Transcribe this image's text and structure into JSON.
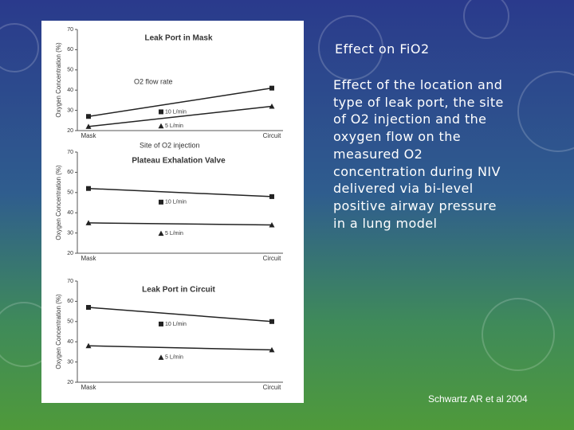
{
  "slide": {
    "title": "Effect on FiO2",
    "body": "Effect of the location and type of leak port, the site of O2 injection and the oxygen flow on the measured O2 concentration during NIV delivered via bi-level positive airway pressure in a lung model",
    "citation": "Schwartz AR et al 2004",
    "annotations": [
      "O2 flow rate",
      "Site of O2 injection"
    ]
  },
  "chart_data": [
    {
      "type": "line",
      "title": "Leak Port in Mask",
      "y_label": "Oxygen Concentration (%)",
      "categories": [
        "Mask",
        "Circuit"
      ],
      "series": [
        {
          "name": "10 L/min",
          "color": "#222222",
          "marker": "square",
          "values": [
            27,
            41
          ]
        },
        {
          "name": "5 L/min",
          "color": "#222222",
          "marker": "triangle",
          "values": [
            22,
            32
          ]
        }
      ],
      "ylim": [
        20,
        70
      ],
      "yticks": [
        20,
        30,
        40,
        50,
        60,
        70
      ]
    },
    {
      "type": "line",
      "title": "Plateau Exhalation Valve",
      "y_label": "Oxygen Concentration (%)",
      "categories": [
        "Mask",
        "Circuit"
      ],
      "series": [
        {
          "name": "10 L/min",
          "color": "#222222",
          "marker": "square",
          "values": [
            52,
            48
          ]
        },
        {
          "name": "5 L/min",
          "color": "#222222",
          "marker": "triangle",
          "values": [
            35,
            34
          ]
        }
      ],
      "ylim": [
        20,
        70
      ],
      "yticks": [
        20,
        30,
        40,
        50,
        60,
        70
      ]
    },
    {
      "type": "line",
      "title": "Leak Port in Circuit",
      "y_label": "Oxygen Concentration (%)",
      "categories": [
        "Mask",
        "Circuit"
      ],
      "series": [
        {
          "name": "10 L/min",
          "color": "#222222",
          "marker": "square",
          "values": [
            57,
            50
          ]
        },
        {
          "name": "5 L/min",
          "color": "#222222",
          "marker": "triangle",
          "values": [
            38,
            36
          ]
        }
      ],
      "ylim": [
        20,
        70
      ],
      "yticks": [
        20,
        30,
        40,
        50,
        60,
        70
      ]
    }
  ]
}
